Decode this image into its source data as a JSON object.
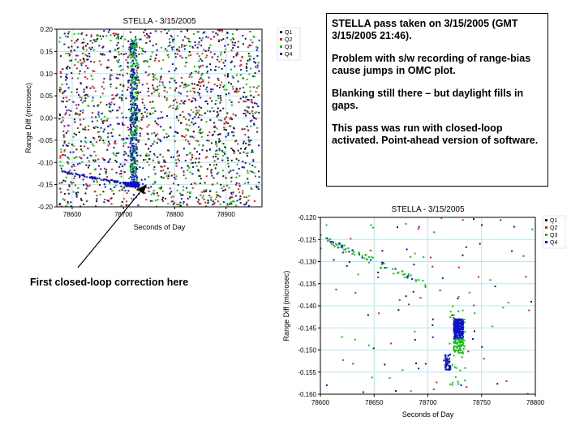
{
  "colors": {
    "Q1": "#1a1a1a",
    "Q2": "#e02020",
    "Q3": "#10c010",
    "Q4": "#1010d0",
    "grid": "#b8e6f0"
  },
  "note": {
    "paragraphs": [
      "STELLA pass taken on 3/15/2005 (GMT 3/15/2005 21:46).",
      "Problem with s/w recording of range-bias cause jumps in OMC plot.",
      "Blanking still there – but daylight fills in gaps.",
      "This pass was run with closed-loop activated.  Point-ahead version of software."
    ]
  },
  "callout": {
    "text": "First closed-loop correction here"
  },
  "chart_data": [
    {
      "type": "scatter",
      "title": "STELLA  - 3/15/2005",
      "xlabel": "Seconds of Day",
      "ylabel": "Range Diff (microsec)",
      "xlim": [
        78570,
        78970
      ],
      "ylim": [
        -0.2,
        0.2
      ],
      "xticks": [
        78600,
        78700,
        78800,
        78900
      ],
      "yticks": [
        -0.2,
        -0.15,
        -0.1,
        -0.05,
        0.0,
        0.05,
        0.1,
        0.15,
        0.2
      ],
      "ytick_labels": [
        "-0.20",
        "-0.15",
        "-0.10",
        "-0.05",
        "0.00",
        "0.05",
        "0.10",
        "0.15",
        "0.20"
      ],
      "legend": [
        "Q1",
        "Q2",
        "Q3",
        "Q4"
      ],
      "legend_position": "right",
      "grid": true
    },
    {
      "type": "scatter",
      "title": "STELLA  - 3/15/2005",
      "xlabel": "Seconds of Day",
      "ylabel": "Range Diff (microsec)",
      "xlim": [
        78600,
        78800
      ],
      "ylim": [
        -0.16,
        -0.12
      ],
      "xticks": [
        78600,
        78650,
        78700,
        78750,
        78800
      ],
      "yticks": [
        -0.16,
        -0.155,
        -0.15,
        -0.145,
        -0.14,
        -0.135,
        -0.13,
        -0.125,
        -0.12
      ],
      "ytick_labels": [
        "-0.160",
        "-0.155",
        "-0.150",
        "-0.145",
        "-0.140",
        "-0.135",
        "-0.130",
        "-0.125",
        "-0.120"
      ],
      "legend": [
        "Q1",
        "Q2",
        "Q3",
        "Q4"
      ],
      "legend_position": "right",
      "grid": true
    }
  ]
}
